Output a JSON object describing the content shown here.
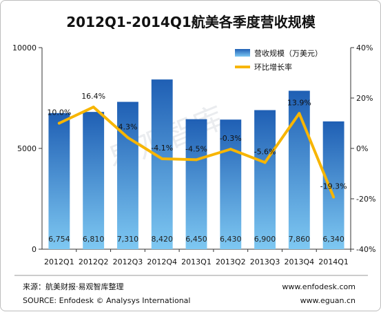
{
  "chart_data": {
    "type": "bar",
    "title": "2012Q1-2014Q1航美各季度营收规模",
    "categories": [
      "2012Q1",
      "2012Q2",
      "2012Q3",
      "2012Q4",
      "2013Q1",
      "2013Q2",
      "2013Q3",
      "2013Q4",
      "2014Q1"
    ],
    "series": [
      {
        "name": "营收规模（万美元）",
        "type": "bar",
        "axis": "left",
        "values": [
          6754,
          6810,
          7310,
          8420,
          6450,
          6430,
          6900,
          7860,
          6340
        ],
        "labels": [
          "6,754",
          "6,810",
          "7,310",
          "8,420",
          "6,450",
          "6,430",
          "6,900",
          "7,860",
          "6,340"
        ]
      },
      {
        "name": "环比增长率",
        "type": "line",
        "axis": "right",
        "values": [
          10.0,
          16.4,
          4.3,
          -4.1,
          -4.5,
          -0.3,
          -5.6,
          13.9,
          -19.3
        ],
        "labels": [
          "10.0%",
          "16.4%",
          "4.3%",
          "-4.1%",
          "-4.5%",
          "-0.3%",
          "-5.6%",
          "13.9%",
          "-19.3%"
        ]
      }
    ],
    "y_left": {
      "ticks": [
        "0",
        "5000",
        "10000"
      ],
      "tick_values": [
        0,
        5000,
        10000
      ],
      "ylim": [
        0,
        10000
      ]
    },
    "y_right": {
      "ticks": [
        "-40%",
        "-20%",
        "0%",
        "20%",
        "40%"
      ],
      "tick_values": [
        -40,
        -20,
        0,
        20,
        40
      ],
      "ylim": [
        -40,
        40
      ]
    },
    "legend_position": "top-right",
    "grid": false,
    "colors": {
      "bar_top": "#1f5fb4",
      "bar_bottom": "#7ec8f2",
      "line": "#f7b500"
    }
  },
  "watermark": "易观智库",
  "footer": {
    "source_cn": "来源：航美财报·易观智库整理",
    "source_en": "SOURCE: Enfodesk © Analysys International",
    "url1": "www.enfodesk.com",
    "url2": "www.eguan.cn"
  }
}
